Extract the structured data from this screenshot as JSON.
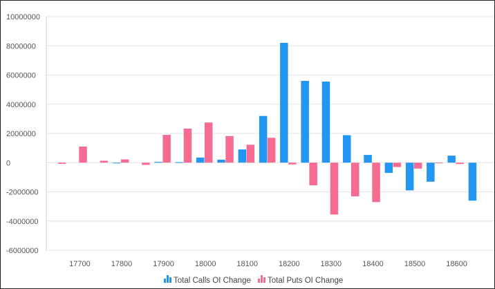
{
  "chart_data": {
    "type": "bar",
    "title": "",
    "xlabel": "",
    "ylabel": "",
    "ylim": [
      -6000000,
      10000000
    ],
    "y_ticks": [
      "10000000",
      "8000000",
      "6000000",
      "4000000",
      "2000000",
      "0",
      "-2000000",
      "-4000000",
      "-6000000"
    ],
    "y_tick_values": [
      10000000,
      8000000,
      6000000,
      4000000,
      2000000,
      0,
      -2000000,
      -4000000,
      -6000000
    ],
    "x_tick_labels": [
      "17700",
      "17800",
      "17900",
      "18000",
      "18100",
      "18200",
      "18300",
      "18400",
      "18500",
      "18600"
    ],
    "categories": [
      "17650",
      "17700",
      "17750",
      "17800",
      "17850",
      "17900",
      "17950",
      "18000",
      "18050",
      "18100",
      "18150",
      "18200",
      "18250",
      "18300",
      "18350",
      "18400",
      "18450",
      "18500",
      "18550",
      "18600",
      "18650"
    ],
    "series": [
      {
        "name": "Total Calls OI Change",
        "color": "#2196f3",
        "values": [
          0,
          0,
          0,
          -30000,
          0,
          50000,
          30000,
          350000,
          200000,
          900000,
          3200000,
          8200000,
          5600000,
          5550000,
          1880000,
          530000,
          -700000,
          -1900000,
          -1300000,
          480000,
          -2600000
        ]
      },
      {
        "name": "Total Puts OI Change",
        "color": "#f56b91",
        "values": [
          -80000,
          1100000,
          130000,
          220000,
          -150000,
          1900000,
          2330000,
          2750000,
          1820000,
          1230000,
          1700000,
          -120000,
          -1550000,
          -3550000,
          -2300000,
          -2700000,
          -300000,
          -400000,
          -30000,
          -90000,
          0
        ]
      }
    ],
    "grid": true,
    "legend_position": "bottom-center"
  },
  "legend_icon": "bar-chart-icon"
}
